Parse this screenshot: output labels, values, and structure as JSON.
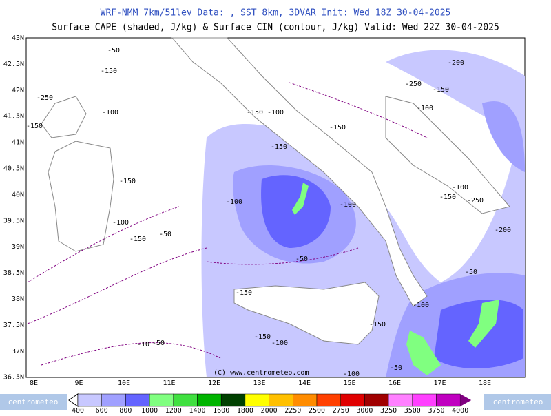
{
  "header": {
    "line1": "WRF-NMM 7km/51lev   Data: , SST 8km, 3DVAR   Init: Wed 18Z 30-04-2025",
    "line2": "Surface CAPE (shaded, J/kg) & Surface CIN (contour, J/kg)   Valid: Wed 22Z 30-04-2025"
  },
  "map": {
    "lat_labels": [
      "43N",
      "42.5N",
      "42N",
      "41.5N",
      "41N",
      "40.5N",
      "40N",
      "39.5N",
      "39N",
      "38.5N",
      "38N",
      "37.5N",
      "37N",
      "36.5N"
    ],
    "lon_labels": [
      "8E",
      "9E",
      "10E",
      "11E",
      "12E",
      "13E",
      "14E",
      "15E",
      "16E",
      "17E",
      "18E"
    ],
    "copyright": "(C) www.centrometeo.com",
    "contour_labels": [
      "-50",
      "-150",
      "-250",
      "-100",
      "-150",
      "-150",
      "-100",
      "-150",
      "-50",
      "-100",
      "-50",
      "-100",
      "-150",
      "-150",
      "-100",
      "-150",
      "-200",
      "-250",
      "-150",
      "-100",
      "-100",
      "-150",
      "-250",
      "-200",
      "-50",
      "-100",
      "-150",
      "-100",
      "-150",
      "-50",
      "-10",
      "-50",
      "-100",
      "-150"
    ]
  },
  "legend": {
    "levels": [
      400,
      600,
      800,
      1000,
      1200,
      1400,
      1600,
      1800,
      2000,
      2250,
      2500,
      2750,
      3000,
      3250,
      3500,
      3750,
      4000
    ],
    "colors": [
      "#c8c8ff",
      "#a0a0ff",
      "#6464ff",
      "#80ff80",
      "#40e040",
      "#00b400",
      "#004000",
      "#ffff00",
      "#ffc000",
      "#ff8c00",
      "#ff4000",
      "#e00000",
      "#a00000",
      "#ff80ff",
      "#ff40ff",
      "#c000c0",
      "#800080"
    ]
  },
  "logos": [
    "centrometeo",
    "centrometeo"
  ]
}
